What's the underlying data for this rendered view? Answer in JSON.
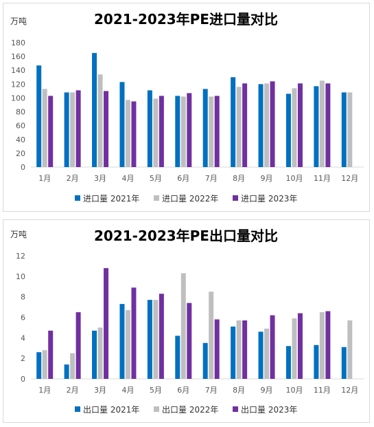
{
  "charts": [
    {
      "id": "import",
      "unit_label": "万吨",
      "chart_data": {
        "type": "bar",
        "title": "2021-2023年PE进口量对比",
        "categories": [
          "1月",
          "2月",
          "3月",
          "4月",
          "5月",
          "6月",
          "7月",
          "8月",
          "9月",
          "10月",
          "11月",
          "12月"
        ],
        "yticks": [
          "0",
          "20",
          "40",
          "60",
          "80",
          "100",
          "120",
          "140",
          "160",
          "180"
        ],
        "ylim": [
          0,
          180
        ],
        "grid": false,
        "legend_position": "bottom",
        "series": [
          {
            "name": "进口量 2021年",
            "color": "#0070c0",
            "values": [
              147,
              108,
              165,
              123,
              111,
              103,
              113,
              130,
              120,
              106,
              117,
              108
            ]
          },
          {
            "name": "进口量 2022年",
            "color": "#bfbfbf",
            "values": [
              113,
              108,
              134,
              97,
              99,
              102,
              102,
              116,
              121,
              114,
              125,
              108
            ]
          },
          {
            "name": "进口量 2023年",
            "color": "#7030a0",
            "values": [
              103,
              111,
              110,
              95,
              103,
              107,
              103,
              121,
              124,
              121,
              121,
              null
            ]
          }
        ]
      }
    },
    {
      "id": "export",
      "unit_label": "万吨",
      "chart_data": {
        "type": "bar",
        "title": "2021-2023年PE出口量对比",
        "categories": [
          "1月",
          "2月",
          "3月",
          "4月",
          "5月",
          "6月",
          "7月",
          "8月",
          "9月",
          "10月",
          "11月",
          "12月"
        ],
        "yticks": [
          "0",
          "2",
          "4",
          "6",
          "8",
          "10",
          "12"
        ],
        "ylim": [
          0,
          12
        ],
        "grid": false,
        "legend_position": "bottom",
        "series": [
          {
            "name": "出口量 2021年",
            "color": "#0070c0",
            "values": [
              2.6,
              1.4,
              4.7,
              7.3,
              7.7,
              4.2,
              3.5,
              5.1,
              4.6,
              3.2,
              3.3,
              3.1
            ]
          },
          {
            "name": "出口量 2022年",
            "color": "#bfbfbf",
            "values": [
              2.8,
              2.5,
              5.0,
              6.7,
              7.7,
              10.3,
              8.5,
              5.7,
              4.9,
              5.9,
              6.5,
              5.7
            ]
          },
          {
            "name": "出口量 2023年",
            "color": "#7030a0",
            "values": [
              4.7,
              6.5,
              10.8,
              8.9,
              8.3,
              7.4,
              5.8,
              5.7,
              6.2,
              6.4,
              6.6,
              null
            ]
          }
        ]
      }
    }
  ]
}
